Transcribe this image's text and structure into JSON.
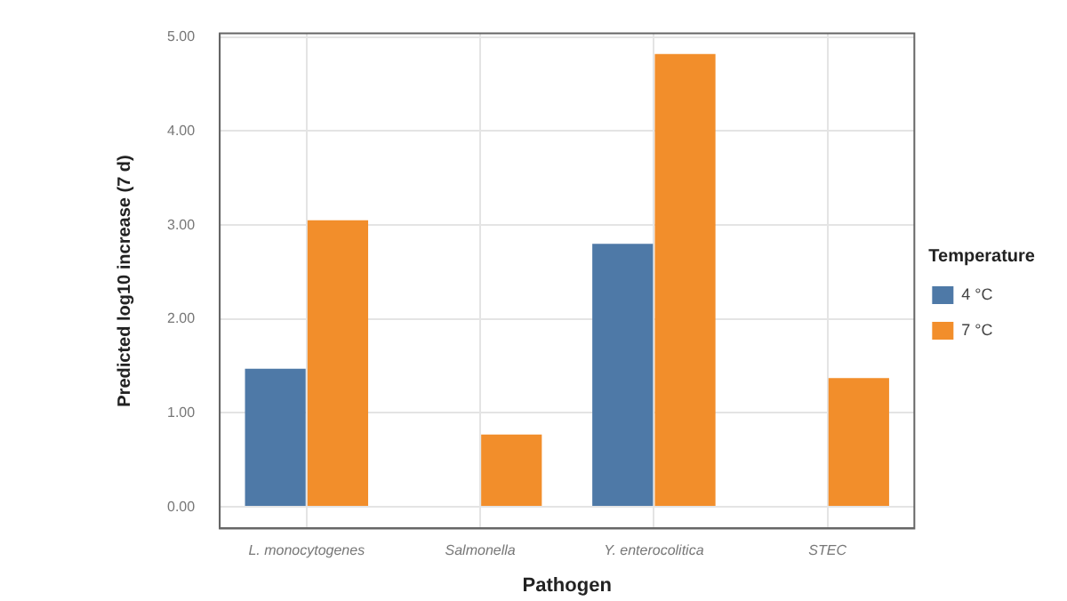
{
  "chart_data": {
    "type": "bar",
    "xlabel": "Pathogen",
    "ylabel": "Predicted log10 increase (7 d)",
    "legend_title": "Temperature",
    "categories": [
      "L. monocytogenes",
      "Salmonella",
      "Y. enterocolitica",
      "STEC"
    ],
    "series": [
      {
        "name": "4 °C",
        "color": "#4e79a7",
        "values": [
          1.47,
          null,
          2.8,
          null
        ]
      },
      {
        "name": "7 °C",
        "color": "#f28e2b",
        "values": [
          3.05,
          0.77,
          4.82,
          1.37
        ]
      }
    ],
    "ylim": [
      -0.23,
      5.04
    ],
    "yticks": [
      {
        "value": 0,
        "label": "0.00"
      },
      {
        "value": 1,
        "label": "1.00"
      },
      {
        "value": 2,
        "label": "2.00"
      },
      {
        "value": 3,
        "label": "3.00"
      },
      {
        "value": 4,
        "label": "4.00"
      },
      {
        "value": 5,
        "label": "5.00"
      }
    ],
    "grid": true,
    "legend": "right"
  }
}
